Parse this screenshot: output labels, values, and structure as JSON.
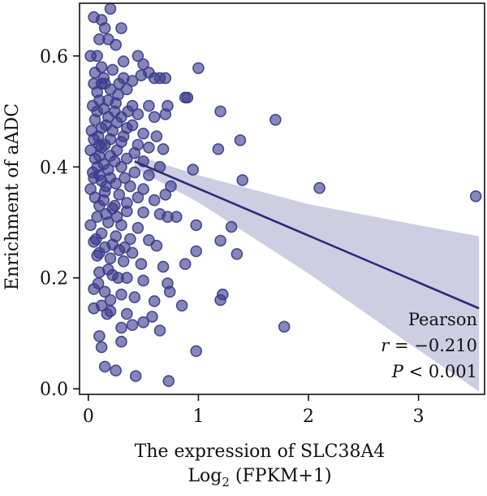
{
  "chart_data": {
    "type": "scatter",
    "title": "",
    "xlabel_line1": "The expression of SLC38A4",
    "xlabel_line2_prefix": "Log",
    "xlabel_line2_subscript": "2",
    "xlabel_line2_suffix": " (FPKM+1)",
    "ylabel": "Enrichment of aADC",
    "xlim": [
      -0.08,
      3.6
    ],
    "ylim": [
      -0.01,
      0.695
    ],
    "xticks": [
      0,
      1,
      2,
      3
    ],
    "xtick_labels": [
      "0",
      "1",
      "2",
      "3"
    ],
    "yticks": [
      0.0,
      0.2,
      0.4,
      0.6
    ],
    "ytick_labels": [
      "0.0",
      "0.2",
      "0.4",
      "0.6"
    ],
    "colors": {
      "point": "#3b3b8c",
      "line": "#2b2b7a",
      "band": "#c6c6de"
    },
    "regression": {
      "x": [
        0.42,
        3.55
      ],
      "y": [
        0.41,
        0.145
      ],
      "ci_x": [
        0.42,
        1.0,
        2.0,
        3.0,
        3.55
      ],
      "ci_lower": [
        0.398,
        0.336,
        0.208,
        0.07,
        -0.005
      ],
      "ci_upper": [
        0.422,
        0.385,
        0.333,
        0.295,
        0.275
      ]
    },
    "annotation": {
      "label": "Pearson",
      "r_symbol": "r",
      "r_value": " = −0.210",
      "p_symbol": "P",
      "p_value": " < 0.001"
    },
    "points": [
      [
        0.05,
        0.67
      ],
      [
        0.12,
        0.665
      ],
      [
        0.2,
        0.685
      ],
      [
        0.15,
        0.65
      ],
      [
        0.3,
        0.65
      ],
      [
        0.1,
        0.63
      ],
      [
        0.18,
        0.63
      ],
      [
        0.08,
        0.6
      ],
      [
        0.02,
        0.6
      ],
      [
        0.25,
        0.62
      ],
      [
        0.12,
        0.58
      ],
      [
        0.32,
        0.59
      ],
      [
        0.45,
        0.6
      ],
      [
        0.5,
        0.585
      ],
      [
        1.0,
        0.578
      ],
      [
        0.55,
        0.57
      ],
      [
        0.6,
        0.56
      ],
      [
        0.65,
        0.56
      ],
      [
        0.7,
        0.56
      ],
      [
        0.48,
        0.565
      ],
      [
        0.05,
        0.55
      ],
      [
        0.15,
        0.55
      ],
      [
        0.2,
        0.54
      ],
      [
        0.28,
        0.55
      ],
      [
        0.35,
        0.54
      ],
      [
        0.1,
        0.52
      ],
      [
        0.25,
        0.515
      ],
      [
        0.4,
        0.51
      ],
      [
        0.55,
        0.51
      ],
      [
        0.72,
        0.51
      ],
      [
        0.88,
        0.525
      ],
      [
        0.9,
        0.525
      ],
      [
        1.2,
        0.5
      ],
      [
        1.7,
        0.485
      ],
      [
        0.08,
        0.5
      ],
      [
        0.18,
        0.49
      ],
      [
        0.3,
        0.49
      ],
      [
        0.45,
        0.495
      ],
      [
        0.6,
        0.49
      ],
      [
        0.7,
        0.495
      ],
      [
        0.12,
        0.47
      ],
      [
        0.22,
        0.465
      ],
      [
        0.35,
        0.47
      ],
      [
        0.5,
        0.46
      ],
      [
        0.62,
        0.455
      ],
      [
        1.38,
        0.448
      ],
      [
        0.05,
        0.45
      ],
      [
        0.15,
        0.44
      ],
      [
        0.3,
        0.445
      ],
      [
        0.45,
        0.44
      ],
      [
        0.55,
        0.435
      ],
      [
        0.68,
        0.432
      ],
      [
        1.18,
        0.432
      ],
      [
        0.02,
        0.43
      ],
      [
        0.1,
        0.42
      ],
      [
        0.2,
        0.42
      ],
      [
        0.35,
        0.415
      ],
      [
        0.5,
        0.41
      ],
      [
        0.65,
        0.4
      ],
      [
        0.08,
        0.4
      ],
      [
        0.18,
        0.395
      ],
      [
        0.3,
        0.4
      ],
      [
        0.42,
        0.39
      ],
      [
        0.55,
        0.385
      ],
      [
        0.95,
        0.395
      ],
      [
        0.05,
        0.38
      ],
      [
        0.12,
        0.375
      ],
      [
        0.25,
        0.37
      ],
      [
        0.38,
        0.365
      ],
      [
        0.5,
        0.36
      ],
      [
        0.75,
        0.365
      ],
      [
        1.4,
        0.376
      ],
      [
        2.1,
        0.362
      ],
      [
        3.52,
        0.347
      ],
      [
        0.02,
        0.36
      ],
      [
        0.15,
        0.355
      ],
      [
        0.28,
        0.35
      ],
      [
        0.45,
        0.345
      ],
      [
        0.6,
        0.34
      ],
      [
        0.7,
        0.35
      ],
      [
        0.1,
        0.33
      ],
      [
        0.22,
        0.325
      ],
      [
        0.35,
        0.32
      ],
      [
        0.5,
        0.318
      ],
      [
        0.65,
        0.315
      ],
      [
        0.8,
        0.31
      ],
      [
        0.72,
        0.31
      ],
      [
        0.08,
        0.31
      ],
      [
        0.18,
        0.3
      ],
      [
        0.3,
        0.295
      ],
      [
        0.45,
        0.29
      ],
      [
        0.98,
        0.295
      ],
      [
        1.3,
        0.292
      ],
      [
        0.02,
        0.295
      ],
      [
        0.12,
        0.28
      ],
      [
        0.25,
        0.275
      ],
      [
        0.38,
        0.27
      ],
      [
        0.55,
        0.268
      ],
      [
        1.2,
        0.267
      ],
      [
        0.05,
        0.265
      ],
      [
        0.15,
        0.255
      ],
      [
        0.28,
        0.25
      ],
      [
        0.4,
        0.245
      ],
      [
        0.62,
        0.258
      ],
      [
        0.98,
        0.248
      ],
      [
        1.35,
        0.243
      ],
      [
        0.08,
        0.24
      ],
      [
        0.2,
        0.235
      ],
      [
        0.32,
        0.23
      ],
      [
        0.48,
        0.225
      ],
      [
        0.68,
        0.22
      ],
      [
        0.88,
        0.225
      ],
      [
        0.1,
        0.21
      ],
      [
        0.22,
        0.205
      ],
      [
        0.35,
        0.2
      ],
      [
        0.5,
        0.195
      ],
      [
        0.72,
        0.19
      ],
      [
        0.74,
        0.175
      ],
      [
        0.05,
        0.18
      ],
      [
        0.15,
        0.175
      ],
      [
        0.3,
        0.17
      ],
      [
        0.42,
        0.165
      ],
      [
        0.6,
        0.158
      ],
      [
        1.2,
        0.16
      ],
      [
        1.22,
        0.17
      ],
      [
        0.85,
        0.15
      ],
      [
        0.12,
        0.15
      ],
      [
        0.2,
        0.14
      ],
      [
        0.35,
        0.135
      ],
      [
        0.5,
        0.12
      ],
      [
        0.58,
        0.13
      ],
      [
        0.05,
        0.145
      ],
      [
        0.3,
        0.11
      ],
      [
        0.4,
        0.115
      ],
      [
        0.65,
        0.105
      ],
      [
        1.78,
        0.112
      ],
      [
        0.1,
        0.095
      ],
      [
        0.3,
        0.085
      ],
      [
        0.12,
        0.075
      ],
      [
        0.98,
        0.068
      ],
      [
        0.15,
        0.04
      ],
      [
        0.25,
        0.033
      ],
      [
        0.43,
        0.023
      ],
      [
        0.73,
        0.014
      ],
      [
        0.06,
        0.57
      ],
      [
        0.14,
        0.56
      ],
      [
        0.22,
        0.575
      ],
      [
        0.32,
        0.56
      ],
      [
        0.4,
        0.555
      ],
      [
        0.08,
        0.535
      ],
      [
        0.18,
        0.52
      ],
      [
        0.27,
        0.53
      ],
      [
        0.04,
        0.51
      ],
      [
        0.14,
        0.505
      ],
      [
        0.24,
        0.5
      ],
      [
        0.36,
        0.5
      ],
      [
        0.06,
        0.485
      ],
      [
        0.16,
        0.475
      ],
      [
        0.26,
        0.48
      ],
      [
        0.4,
        0.475
      ],
      [
        0.03,
        0.465
      ],
      [
        0.09,
        0.455
      ],
      [
        0.2,
        0.45
      ],
      [
        0.32,
        0.455
      ],
      [
        0.42,
        0.425
      ],
      [
        0.12,
        0.435
      ],
      [
        0.26,
        0.43
      ],
      [
        0.06,
        0.415
      ],
      [
        0.14,
        0.405
      ],
      [
        0.24,
        0.41
      ],
      [
        0.33,
        0.38
      ],
      [
        0.04,
        0.39
      ],
      [
        0.1,
        0.385
      ],
      [
        0.2,
        0.38
      ],
      [
        0.06,
        0.345
      ],
      [
        0.14,
        0.34
      ],
      [
        0.24,
        0.33
      ],
      [
        0.35,
        0.335
      ],
      [
        0.16,
        0.315
      ],
      [
        0.26,
        0.31
      ],
      [
        0.07,
        0.27
      ],
      [
        0.22,
        0.26
      ],
      [
        0.33,
        0.255
      ],
      [
        0.1,
        0.245
      ],
      [
        0.18,
        0.215
      ],
      [
        0.27,
        0.2
      ],
      [
        0.09,
        0.19
      ],
      [
        0.2,
        0.16
      ],
      [
        0.17,
        0.135
      ],
      [
        0.12,
        0.55
      ],
      [
        0.1,
        0.44
      ],
      [
        0.16,
        0.365
      ]
    ]
  }
}
